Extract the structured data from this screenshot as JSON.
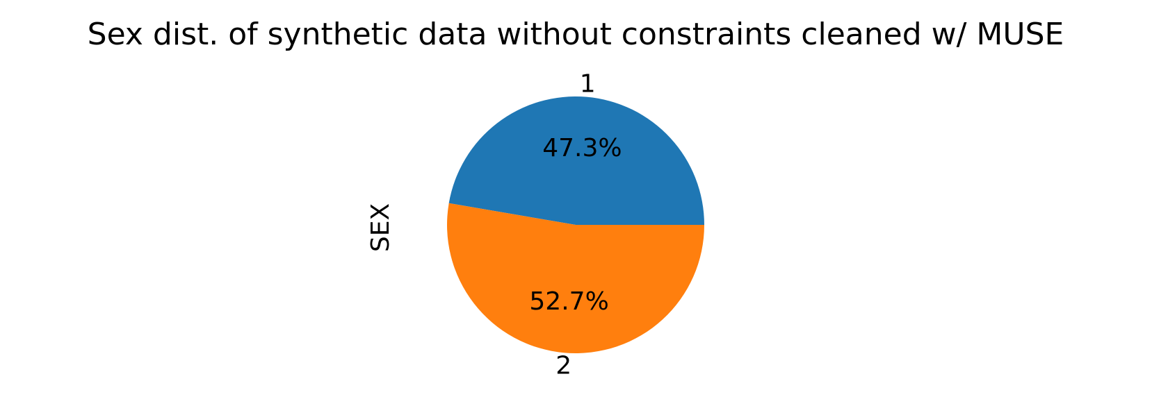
{
  "chart_data": {
    "type": "pie",
    "title": "Sex dist. of synthetic data without constraints cleaned w/ MUSE",
    "ylabel": "SEX",
    "slices": [
      {
        "label": "1",
        "value": 47.3,
        "pct_label": "47.3%",
        "color": "#1f77b4"
      },
      {
        "label": "2",
        "value": 52.7,
        "pct_label": "52.7%",
        "color": "#ff7f0e"
      }
    ],
    "start_angle_deg": 0,
    "direction": "counterclockwise",
    "legend": "none",
    "grid": false
  }
}
